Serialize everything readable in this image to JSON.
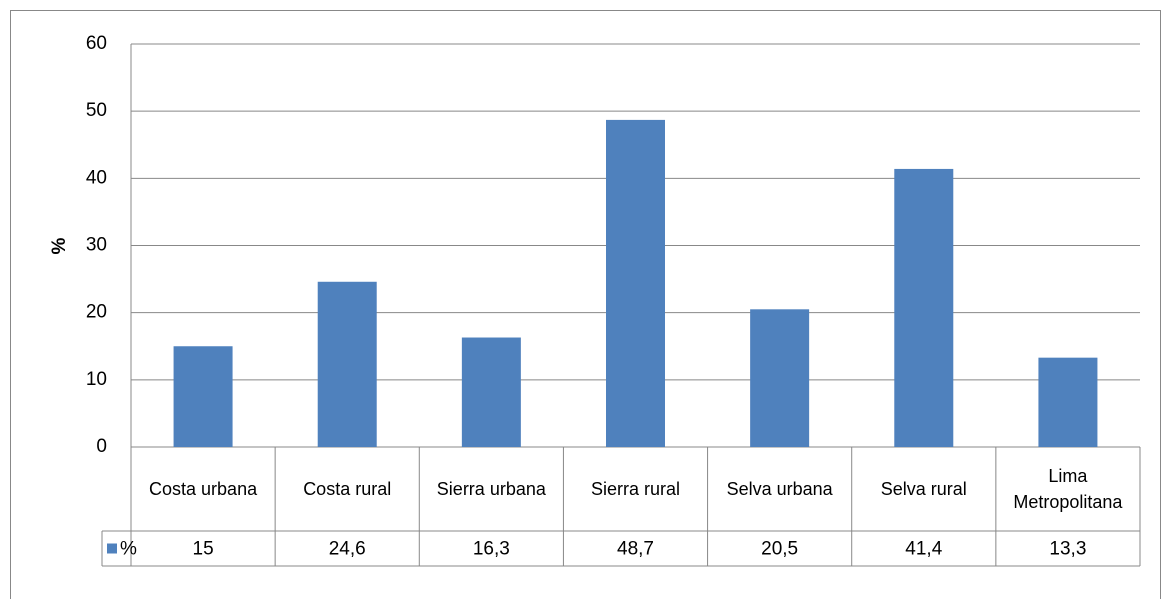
{
  "chart_data": {
    "type": "bar",
    "y_label": "%",
    "categories": [
      "Costa urbana",
      "Costa rural",
      "Sierra urbana",
      "Sierra rural",
      "Selva urbana",
      "Selva rural",
      "Lima Metropolitana"
    ],
    "series": [
      {
        "name": "%",
        "color": "#4f81bd",
        "values": [
          15,
          24.6,
          16.3,
          48.7,
          20.5,
          41.4,
          13.3
        ],
        "value_labels": [
          "15",
          "24,6",
          "16,3",
          "48,7",
          "20,5",
          "41,4",
          "13,3"
        ]
      }
    ],
    "ylim": [
      0,
      60
    ],
    "yticks": [
      0,
      10,
      20,
      30,
      40,
      50,
      60
    ],
    "grid": true
  }
}
